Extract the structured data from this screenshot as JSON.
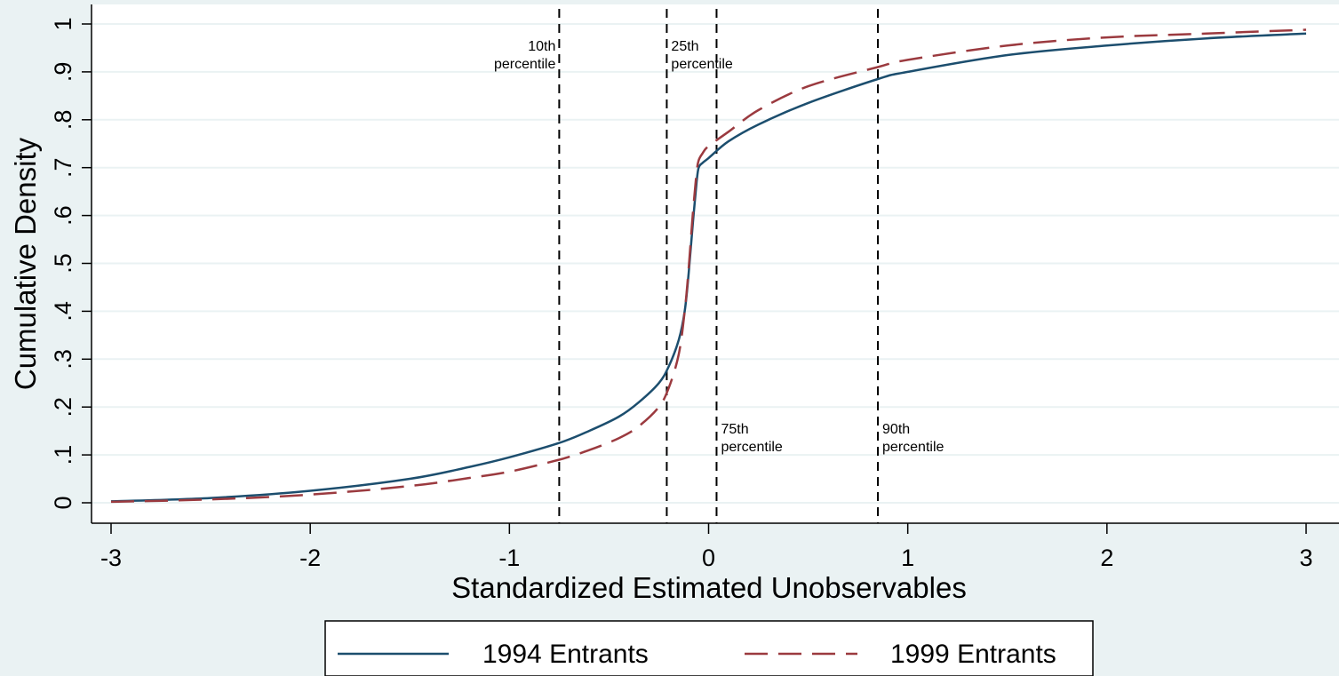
{
  "chart_data": {
    "type": "line",
    "xlabel": "Standardized Estimated Unobservables",
    "ylabel": "Cumulative Density",
    "xlim": [
      -3,
      3
    ],
    "ylim": [
      0,
      1
    ],
    "x_ticks": [
      {
        "v": -3,
        "label": "-3"
      },
      {
        "v": -2,
        "label": "-2"
      },
      {
        "v": -1,
        "label": "-1"
      },
      {
        "v": 0,
        "label": "0"
      },
      {
        "v": 1,
        "label": "1"
      },
      {
        "v": 2,
        "label": "2"
      },
      {
        "v": 3,
        "label": "3"
      }
    ],
    "y_ticks": [
      {
        "v": 0,
        "label": "0"
      },
      {
        "v": 0.1,
        "label": ".1"
      },
      {
        "v": 0.2,
        "label": ".2"
      },
      {
        "v": 0.3,
        "label": ".3"
      },
      {
        "v": 0.4,
        "label": ".4"
      },
      {
        "v": 0.5,
        "label": ".5"
      },
      {
        "v": 0.6,
        "label": ".6"
      },
      {
        "v": 0.7,
        "label": ".7"
      },
      {
        "v": 0.8,
        "label": ".8"
      },
      {
        "v": 0.9,
        "label": ".9"
      },
      {
        "v": 1,
        "label": "1"
      }
    ],
    "grid": true,
    "legend_position": "bottom",
    "series": [
      {
        "name": "1994 Entrants",
        "color": "#1c4e6e",
        "dash": "solid",
        "x": [
          -3.0,
          -2.5,
          -2.0,
          -1.5,
          -1.2,
          -1.0,
          -0.75,
          -0.6,
          -0.45,
          -0.35,
          -0.25,
          -0.2,
          -0.15,
          -0.12,
          -0.1,
          -0.08,
          -0.06,
          -0.05,
          -0.03,
          0.0,
          0.1,
          0.25,
          0.5,
          0.85,
          1.0,
          1.5,
          2.0,
          2.5,
          3.0
        ],
        "y": [
          0.003,
          0.01,
          0.025,
          0.05,
          0.075,
          0.095,
          0.125,
          0.15,
          0.18,
          0.21,
          0.25,
          0.285,
          0.34,
          0.4,
          0.48,
          0.58,
          0.67,
          0.7,
          0.71,
          0.72,
          0.755,
          0.79,
          0.835,
          0.885,
          0.9,
          0.935,
          0.955,
          0.97,
          0.98
        ]
      },
      {
        "name": "1999 Entrants",
        "color": "#9b3a3f",
        "dash": "long-dash",
        "x": [
          -3.0,
          -2.5,
          -2.0,
          -1.5,
          -1.2,
          -1.0,
          -0.75,
          -0.6,
          -0.45,
          -0.35,
          -0.25,
          -0.2,
          -0.15,
          -0.12,
          -0.1,
          -0.08,
          -0.06,
          -0.05,
          -0.03,
          0.0,
          0.1,
          0.25,
          0.5,
          0.85,
          1.0,
          1.5,
          2.0,
          2.5,
          3.0
        ],
        "y": [
          0.002,
          0.007,
          0.017,
          0.035,
          0.052,
          0.065,
          0.09,
          0.11,
          0.135,
          0.16,
          0.2,
          0.24,
          0.31,
          0.4,
          0.49,
          0.6,
          0.69,
          0.715,
          0.73,
          0.745,
          0.775,
          0.82,
          0.87,
          0.91,
          0.925,
          0.955,
          0.972,
          0.98,
          0.988
        ]
      }
    ],
    "percentile_lines": [
      {
        "x": -0.75,
        "label_line1": "10th",
        "label_line2": "percentile",
        "label_side": "left",
        "label_level": "top"
      },
      {
        "x": -0.21,
        "label_line1": "25th",
        "label_line2": "percentile",
        "label_side": "right",
        "label_level": "top"
      },
      {
        "x": 0.04,
        "label_line1": "75th",
        "label_line2": "percentile",
        "label_side": "right",
        "label_level": "bottom"
      },
      {
        "x": 0.85,
        "label_line1": "90th",
        "label_line2": "percentile",
        "label_side": "right",
        "label_level": "bottom"
      }
    ],
    "colors": {
      "background": "#eaf2f3",
      "plot_background": "#ffffff",
      "grid": "#eaf2f3",
      "percentile_line": "#000000"
    }
  }
}
